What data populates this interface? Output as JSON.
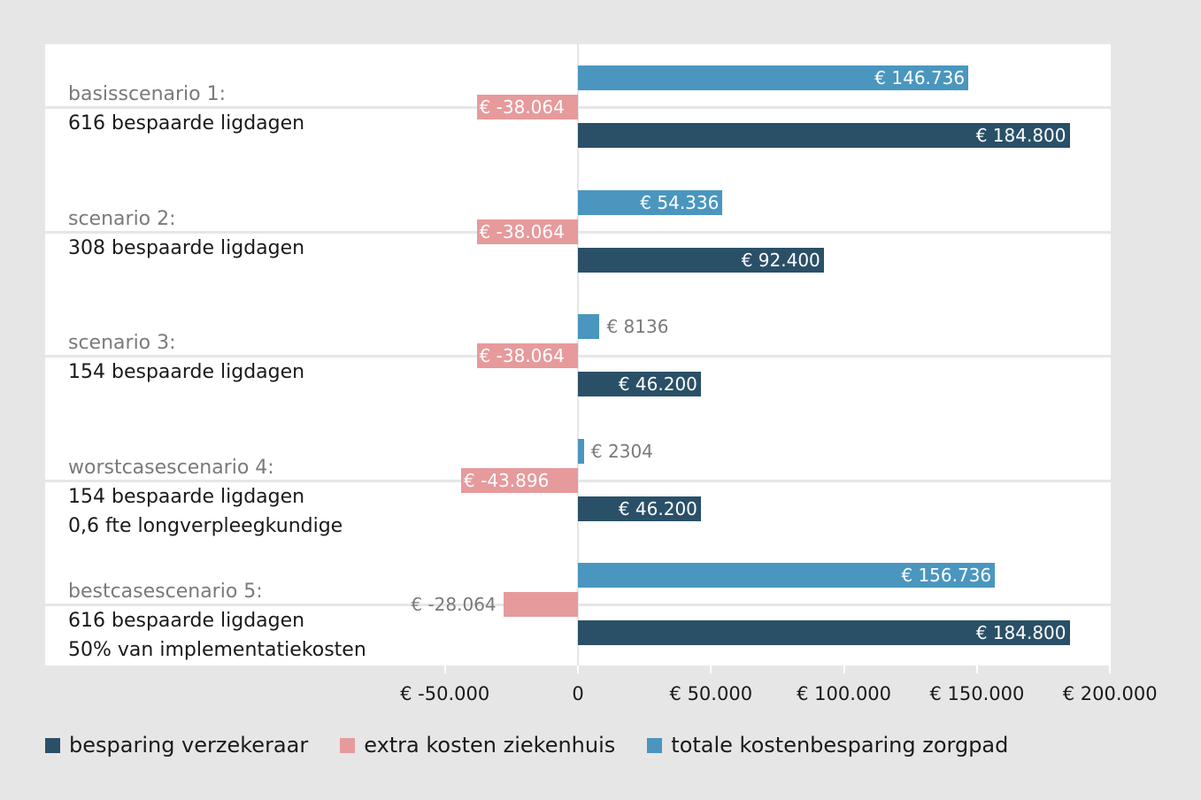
{
  "chart_data": {
    "type": "bar",
    "orientation": "horizontal",
    "categories": [
      {
        "title": "basisscenario 1:",
        "lines": [
          "616 bespaarde ligdagen"
        ]
      },
      {
        "title": "scenario 2:",
        "lines": [
          "308 bespaarde ligdagen"
        ]
      },
      {
        "title": "scenario 3:",
        "lines": [
          "154 bespaarde ligdagen"
        ]
      },
      {
        "title": "worstcasescenario 4:",
        "lines": [
          "154 bespaarde ligdagen",
          "0,6 fte longverpleegkundige"
        ]
      },
      {
        "title": "bestcasescenario 5:",
        "lines": [
          "616 bespaarde ligdagen",
          "50% van implementatiekosten"
        ]
      }
    ],
    "series": [
      {
        "name": "totale kostenbesparing zorgpad",
        "color": "#4a96bf",
        "values": [
          146736,
          54336,
          8136,
          2304,
          156736
        ],
        "labels": [
          "€ 146.736",
          "€ 54.336",
          "€ 8136",
          "€ 2304",
          "€ 156.736"
        ]
      },
      {
        "name": "extra kosten ziekenhuis",
        "color": "#e69a9c",
        "values": [
          -38064,
          -38064,
          -38064,
          -43896,
          -28064
        ],
        "labels": [
          "€ -38.064",
          "€ -38.064",
          "€ -38.064",
          "€ -43.896",
          "€ -28.064"
        ]
      },
      {
        "name": "besparing verzekeraar",
        "color": "#2a5068",
        "values": [
          184800,
          92400,
          46200,
          46200,
          184800
        ],
        "labels": [
          "€ 184.800",
          "€ 92.400",
          "€ 46.200",
          "€ 46.200",
          "€ 184.800"
        ]
      }
    ],
    "legend_order": [
      2,
      1,
      0
    ],
    "xlim": [
      -50000,
      200000
    ],
    "xticks": [
      -50000,
      0,
      50000,
      100000,
      150000,
      200000
    ],
    "xtick_labels": [
      "€ -50.000",
      "0",
      "€ 50.000",
      "€ 100.000",
      "€ 150.000",
      "€ 200.000"
    ],
    "legend_placement": "bottom"
  }
}
